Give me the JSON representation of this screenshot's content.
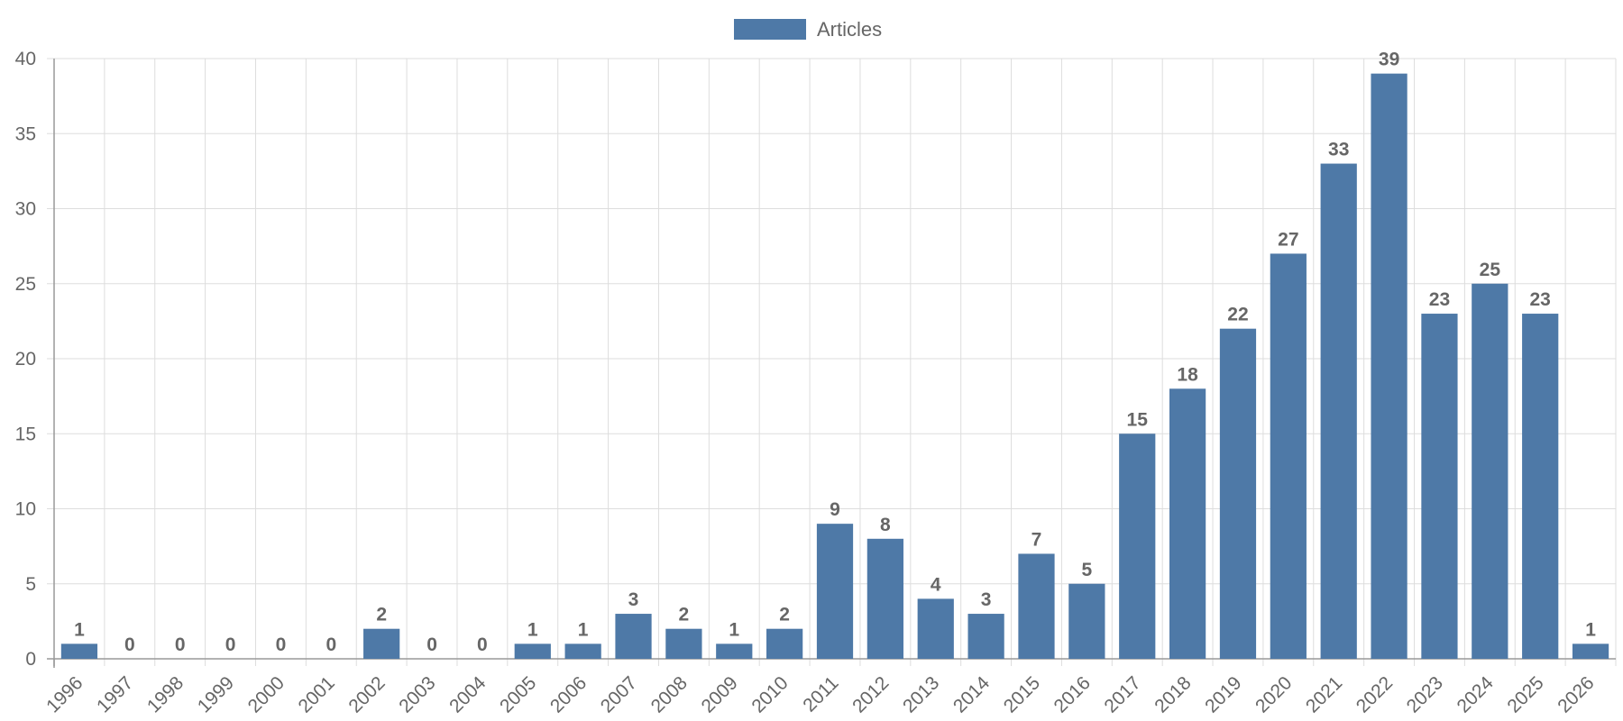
{
  "chart_data": {
    "type": "bar",
    "categories": [
      "1996",
      "1997",
      "1998",
      "1999",
      "2000",
      "2001",
      "2002",
      "2003",
      "2004",
      "2005",
      "2006",
      "2007",
      "2008",
      "2009",
      "2010",
      "2011",
      "2012",
      "2013",
      "2014",
      "2015",
      "2016",
      "2017",
      "2018",
      "2019",
      "2020",
      "2021",
      "2022",
      "2023",
      "2024",
      "2025",
      "2026"
    ],
    "series": [
      {
        "name": "Articles",
        "values": [
          1,
          0,
          0,
          0,
          0,
          0,
          2,
          0,
          0,
          1,
          1,
          3,
          2,
          1,
          2,
          9,
          8,
          4,
          3,
          7,
          5,
          15,
          18,
          22,
          27,
          33,
          39,
          23,
          25,
          23,
          1
        ]
      }
    ],
    "ylim": [
      0,
      40
    ],
    "yticks": [
      0,
      5,
      10,
      15,
      20,
      25,
      30,
      35,
      40
    ],
    "grid": true,
    "legend_position": "top-center",
    "data_labels": true,
    "colors": {
      "bar": "#4e79a7",
      "grid": "#dddddd",
      "axis": "#999999",
      "text": "#666666"
    }
  }
}
